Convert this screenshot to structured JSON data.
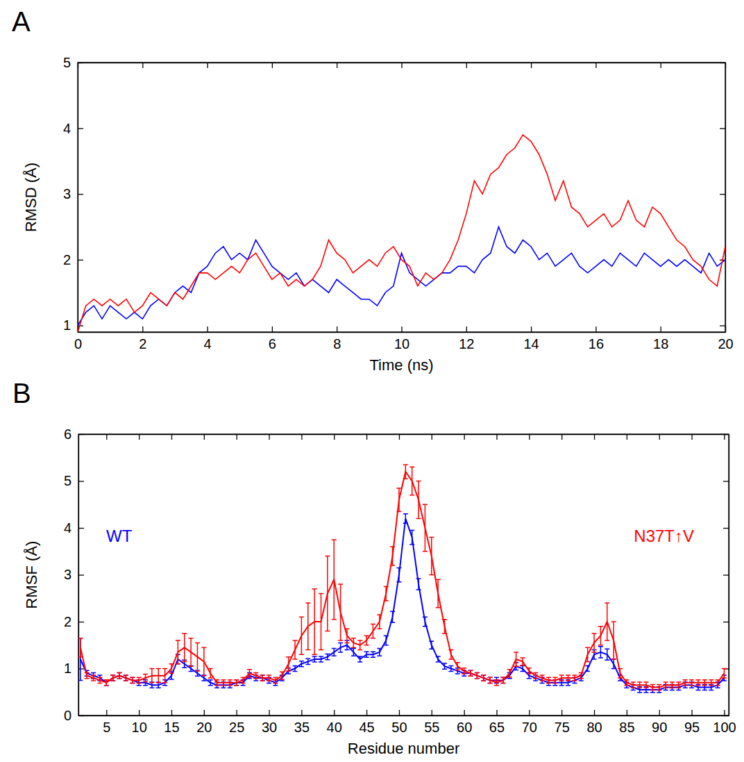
{
  "chart_data": [
    {
      "type": "line",
      "title": "A",
      "x_label": "Time (ns)",
      "y_label": "RMSD (Å)",
      "xlim": [
        0,
        20
      ],
      "xticks": [
        0,
        2,
        4,
        6,
        8,
        10,
        12,
        14,
        16,
        18,
        20
      ],
      "ylim": [
        0.9,
        5
      ],
      "yticks": [
        1,
        2,
        3,
        4,
        5
      ],
      "x": [
        0,
        0.25,
        0.5,
        0.75,
        1,
        1.25,
        1.5,
        1.75,
        2,
        2.25,
        2.5,
        2.75,
        3,
        3.25,
        3.5,
        3.75,
        4,
        4.25,
        4.5,
        4.75,
        5,
        5.25,
        5.5,
        5.75,
        6,
        6.25,
        6.5,
        6.75,
        7,
        7.25,
        7.5,
        7.75,
        8,
        8.25,
        8.5,
        8.75,
        9,
        9.25,
        9.5,
        9.75,
        10,
        10.25,
        10.5,
        10.75,
        11,
        11.25,
        11.5,
        11.75,
        12,
        12.25,
        12.5,
        12.75,
        13,
        13.25,
        13.5,
        13.75,
        14,
        14.25,
        14.5,
        14.75,
        15,
        15.25,
        15.5,
        15.75,
        16,
        16.25,
        16.5,
        16.75,
        17,
        17.25,
        17.5,
        17.75,
        18,
        18.25,
        18.5,
        18.75,
        19,
        19.25,
        19.5,
        19.75,
        20
      ],
      "series": [
        {
          "color": "#0000ff",
          "values": [
            1.0,
            1.2,
            1.3,
            1.1,
            1.3,
            1.2,
            1.1,
            1.2,
            1.1,
            1.3,
            1.4,
            1.3,
            1.5,
            1.6,
            1.5,
            1.8,
            1.9,
            2.1,
            2.2,
            2.0,
            2.1,
            2.0,
            2.3,
            2.1,
            1.9,
            1.8,
            1.7,
            1.8,
            1.6,
            1.7,
            1.6,
            1.5,
            1.7,
            1.6,
            1.5,
            1.4,
            1.4,
            1.3,
            1.5,
            1.6,
            2.1,
            1.8,
            1.7,
            1.6,
            1.7,
            1.8,
            1.8,
            1.9,
            1.9,
            1.8,
            2.0,
            2.1,
            2.5,
            2.2,
            2.1,
            2.3,
            2.2,
            2.0,
            2.1,
            1.9,
            2.0,
            2.1,
            1.9,
            1.8,
            1.9,
            2.0,
            1.9,
            2.1,
            2.0,
            1.9,
            2.1,
            2.0,
            1.9,
            2.0,
            1.9,
            2.0,
            1.9,
            1.8,
            2.1,
            1.9,
            2.0
          ]
        },
        {
          "color": "#ff0000",
          "values": [
            0.9,
            1.3,
            1.4,
            1.3,
            1.4,
            1.3,
            1.4,
            1.2,
            1.3,
            1.5,
            1.4,
            1.3,
            1.5,
            1.4,
            1.6,
            1.8,
            1.8,
            1.7,
            1.8,
            1.9,
            1.8,
            2.0,
            2.1,
            1.9,
            1.7,
            1.8,
            1.6,
            1.7,
            1.6,
            1.7,
            1.9,
            2.3,
            2.1,
            2.0,
            1.8,
            1.9,
            2.0,
            1.9,
            2.1,
            2.2,
            2.0,
            1.9,
            1.6,
            1.8,
            1.7,
            1.8,
            2.0,
            2.3,
            2.7,
            3.2,
            3.0,
            3.3,
            3.4,
            3.6,
            3.7,
            3.9,
            3.8,
            3.6,
            3.3,
            2.9,
            3.2,
            2.8,
            2.7,
            2.5,
            2.6,
            2.7,
            2.5,
            2.6,
            2.9,
            2.6,
            2.5,
            2.8,
            2.7,
            2.5,
            2.3,
            2.2,
            2.0,
            1.9,
            1.7,
            1.6,
            2.2
          ]
        }
      ]
    },
    {
      "type": "line",
      "title": "B",
      "x_label": "Residue number",
      "y_label": "RMSF (Å)",
      "xlim": [
        0.7,
        100.7
      ],
      "xticks": [
        5,
        10,
        15,
        20,
        25,
        30,
        35,
        40,
        45,
        50,
        55,
        60,
        65,
        70,
        75,
        80,
        85,
        90,
        95,
        100
      ],
      "ylim": [
        0,
        6
      ],
      "yticks": [
        0,
        1,
        2,
        3,
        4,
        5,
        6
      ],
      "x": [
        1,
        2,
        3,
        4,
        5,
        6,
        7,
        8,
        9,
        10,
        11,
        12,
        13,
        14,
        15,
        16,
        17,
        18,
        19,
        20,
        21,
        22,
        23,
        24,
        25,
        26,
        27,
        28,
        29,
        30,
        31,
        32,
        33,
        34,
        35,
        36,
        37,
        38,
        39,
        40,
        41,
        42,
        43,
        44,
        45,
        46,
        47,
        48,
        49,
        50,
        51,
        52,
        53,
        54,
        55,
        56,
        57,
        58,
        59,
        60,
        61,
        62,
        63,
        64,
        65,
        66,
        67,
        68,
        69,
        70,
        71,
        72,
        73,
        74,
        75,
        76,
        77,
        78,
        79,
        80,
        81,
        82,
        83,
        84,
        85,
        86,
        87,
        88,
        89,
        90,
        91,
        92,
        93,
        94,
        95,
        96,
        97,
        98,
        99,
        100
      ],
      "series": [
        {
          "name": "WT",
          "color": "#0000ff",
          "values": [
            1.2,
            0.9,
            0.85,
            0.8,
            0.7,
            0.8,
            0.85,
            0.8,
            0.75,
            0.7,
            0.7,
            0.65,
            0.65,
            0.7,
            0.85,
            1.2,
            1.1,
            1.0,
            0.9,
            0.8,
            0.7,
            0.65,
            0.65,
            0.65,
            0.7,
            0.7,
            0.85,
            0.8,
            0.8,
            0.75,
            0.7,
            0.8,
            0.95,
            1.0,
            1.1,
            1.15,
            1.2,
            1.2,
            1.25,
            1.35,
            1.45,
            1.5,
            1.35,
            1.2,
            1.3,
            1.3,
            1.35,
            1.6,
            2.1,
            3.0,
            4.2,
            3.8,
            2.8,
            2.0,
            1.5,
            1.2,
            1.05,
            1.0,
            0.95,
            0.9,
            0.9,
            0.85,
            0.8,
            0.75,
            0.75,
            0.75,
            0.85,
            1.05,
            1.0,
            0.85,
            0.8,
            0.75,
            0.7,
            0.7,
            0.7,
            0.7,
            0.75,
            0.8,
            1.0,
            1.3,
            1.35,
            1.3,
            1.1,
            0.8,
            0.65,
            0.6,
            0.55,
            0.55,
            0.55,
            0.55,
            0.6,
            0.6,
            0.6,
            0.65,
            0.65,
            0.6,
            0.6,
            0.6,
            0.65,
            0.8
          ],
          "errors": [
            0.45,
            0.06,
            0.06,
            0.06,
            0.06,
            0.06,
            0.06,
            0.06,
            0.06,
            0.06,
            0.06,
            0.06,
            0.06,
            0.06,
            0.08,
            0.1,
            0.08,
            0.06,
            0.06,
            0.06,
            0.06,
            0.06,
            0.06,
            0.06,
            0.06,
            0.06,
            0.06,
            0.06,
            0.06,
            0.06,
            0.06,
            0.06,
            0.06,
            0.06,
            0.06,
            0.06,
            0.06,
            0.06,
            0.06,
            0.08,
            0.1,
            0.1,
            0.08,
            0.06,
            0.06,
            0.06,
            0.08,
            0.1,
            0.12,
            0.15,
            0.1,
            0.15,
            0.12,
            0.1,
            0.08,
            0.06,
            0.06,
            0.06,
            0.06,
            0.06,
            0.06,
            0.06,
            0.06,
            0.06,
            0.06,
            0.06,
            0.06,
            0.08,
            0.06,
            0.06,
            0.06,
            0.06,
            0.06,
            0.06,
            0.06,
            0.06,
            0.06,
            0.06,
            0.06,
            0.1,
            0.12,
            0.12,
            0.1,
            0.06,
            0.06,
            0.06,
            0.06,
            0.06,
            0.06,
            0.06,
            0.06,
            0.06,
            0.06,
            0.06,
            0.06,
            0.06,
            0.06,
            0.06,
            0.06,
            0.06
          ]
        },
        {
          "name": "N37T↑V",
          "color": "#ff0000",
          "values": [
            1.45,
            0.85,
            0.8,
            0.75,
            0.7,
            0.8,
            0.85,
            0.8,
            0.75,
            0.75,
            0.8,
            0.85,
            0.85,
            0.85,
            1.0,
            1.35,
            1.45,
            1.35,
            1.25,
            1.15,
            0.9,
            0.7,
            0.7,
            0.7,
            0.7,
            0.75,
            0.9,
            0.85,
            0.8,
            0.8,
            0.75,
            0.85,
            1.1,
            1.4,
            1.7,
            1.9,
            2.0,
            2.0,
            2.6,
            2.9,
            2.2,
            1.7,
            1.55,
            1.5,
            1.6,
            1.8,
            2.0,
            2.6,
            3.4,
            4.6,
            5.2,
            5.0,
            4.6,
            4.0,
            3.4,
            2.6,
            1.9,
            1.3,
            1.05,
            0.95,
            0.9,
            0.85,
            0.8,
            0.75,
            0.7,
            0.75,
            0.9,
            1.2,
            1.15,
            0.95,
            0.85,
            0.8,
            0.75,
            0.75,
            0.8,
            0.8,
            0.8,
            0.85,
            1.3,
            1.55,
            1.7,
            2.0,
            1.6,
            0.9,
            0.7,
            0.65,
            0.65,
            0.65,
            0.6,
            0.6,
            0.65,
            0.65,
            0.65,
            0.7,
            0.7,
            0.7,
            0.7,
            0.7,
            0.7,
            0.9
          ],
          "errors": [
            0.2,
            0.06,
            0.06,
            0.06,
            0.06,
            0.06,
            0.06,
            0.06,
            0.06,
            0.06,
            0.08,
            0.15,
            0.15,
            0.15,
            0.1,
            0.25,
            0.3,
            0.3,
            0.3,
            0.3,
            0.1,
            0.06,
            0.06,
            0.06,
            0.06,
            0.06,
            0.08,
            0.06,
            0.06,
            0.06,
            0.06,
            0.08,
            0.15,
            0.2,
            0.4,
            0.5,
            0.7,
            0.6,
            0.8,
            0.85,
            0.6,
            0.15,
            0.1,
            0.1,
            0.1,
            0.15,
            0.15,
            0.15,
            0.2,
            0.25,
            0.15,
            0.3,
            0.4,
            0.5,
            0.4,
            0.3,
            0.15,
            0.1,
            0.08,
            0.06,
            0.06,
            0.06,
            0.06,
            0.06,
            0.06,
            0.06,
            0.08,
            0.15,
            0.08,
            0.06,
            0.06,
            0.06,
            0.06,
            0.06,
            0.06,
            0.06,
            0.06,
            0.06,
            0.15,
            0.2,
            0.2,
            0.4,
            0.4,
            0.1,
            0.06,
            0.06,
            0.06,
            0.06,
            0.06,
            0.06,
            0.06,
            0.06,
            0.06,
            0.06,
            0.06,
            0.06,
            0.06,
            0.06,
            0.06,
            0.1
          ]
        }
      ]
    }
  ]
}
